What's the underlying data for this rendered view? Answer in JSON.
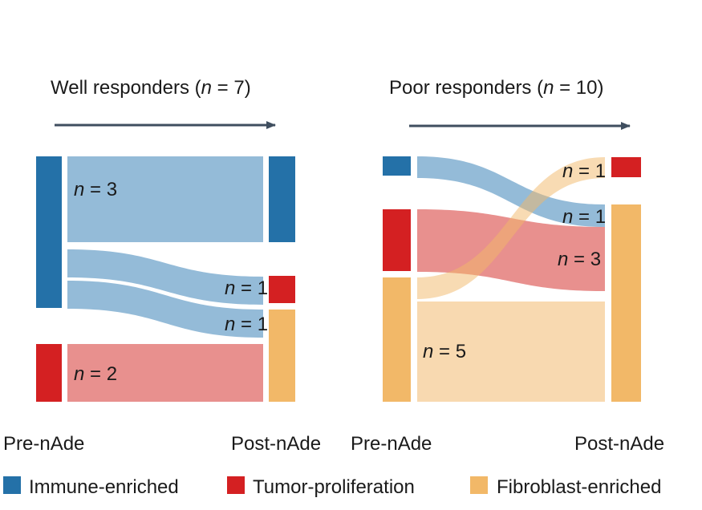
{
  "colors": {
    "immune": "#2471a8",
    "immune_flow": "#94bbd8",
    "tumor": "#d42022",
    "tumor_flow": "#e8908e",
    "fibro": "#f2b868",
    "fibro_flow": "#f8d9b0",
    "arrow": "#3f4e5f",
    "text": "#1a1a1a"
  },
  "panels": [
    {
      "title_prefix": "Well responders (",
      "title_n": "n",
      "title_suffix": " = 7)",
      "pre_label": "Pre-nAde",
      "post_label": "Post-nAde",
      "flows": [
        {
          "from": "Immune-enriched",
          "to": "Immune-enriched",
          "n": 3,
          "label_n": "n",
          "label_rest": " = 3"
        },
        {
          "from": "Immune-enriched",
          "to": "Tumor-proliferation",
          "n": 1,
          "label_n": "n",
          "label_rest": " = 1"
        },
        {
          "from": "Immune-enriched",
          "to": "Fibroblast-enriched",
          "n": 1,
          "label_n": "n",
          "label_rest": " = 1"
        },
        {
          "from": "Tumor-proliferation",
          "to": "Fibroblast-enriched",
          "n": 2,
          "label_n": "n",
          "label_rest": " = 2"
        }
      ]
    },
    {
      "title_prefix": "Poor responders (",
      "title_n": "n",
      "title_suffix": " = 10)",
      "pre_label": "Pre-nAde",
      "post_label": "Post-nAde",
      "flows": [
        {
          "from": "Immune-enriched",
          "to": "Fibroblast-enriched",
          "n": 1,
          "label_n": "n",
          "label_rest": " = 1"
        },
        {
          "from": "Tumor-proliferation",
          "to": "Fibroblast-enriched",
          "n": 3,
          "label_n": "n",
          "label_rest": " = 3"
        },
        {
          "from": "Fibroblast-enriched",
          "to": "Tumor-proliferation",
          "n": 1,
          "label_n": "n",
          "label_rest": " = 1"
        },
        {
          "from": "Fibroblast-enriched",
          "to": "Fibroblast-enriched",
          "n": 5,
          "label_n": "n",
          "label_rest": " = 5"
        }
      ]
    }
  ],
  "legend": [
    {
      "label": "Immune-enriched",
      "color": "#2471a8"
    },
    {
      "label": "Tumor-proliferation",
      "color": "#d42022"
    },
    {
      "label": "Fibroblast-enriched",
      "color": "#f2b868"
    }
  ]
}
